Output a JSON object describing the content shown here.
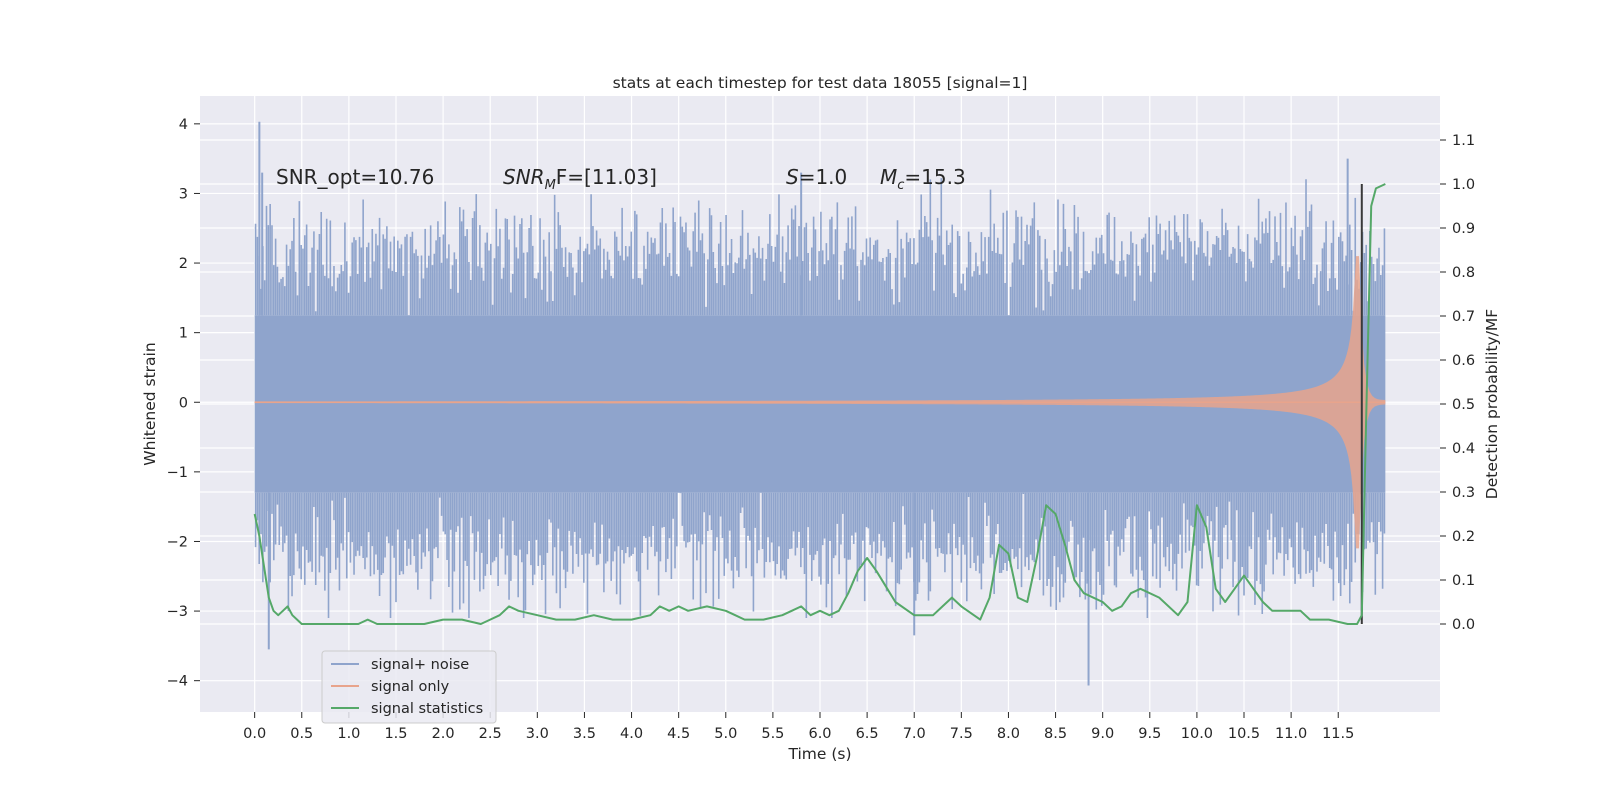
{
  "chart_data": {
    "type": "line",
    "title": "stats at each timestep for test data 18055 [signal=1]",
    "xlabel": "Time (s)",
    "ylabel_left": "Whitened strain",
    "ylabel_right": "Detection probability/MF",
    "xlim": [
      -0.58,
      12.58
    ],
    "ylim_left": [
      -4.45,
      4.4
    ],
    "ylim_right": [
      -0.2,
      1.2
    ],
    "grid": true,
    "legend_position": "lower-left",
    "x_ticks": [
      "0.0",
      "0.5",
      "1.0",
      "1.5",
      "2.0",
      "2.5",
      "3.0",
      "3.5",
      "4.0",
      "4.5",
      "5.0",
      "5.5",
      "6.0",
      "6.5",
      "7.0",
      "7.5",
      "8.0",
      "8.5",
      "9.0",
      "9.5",
      "10.0",
      "10.5",
      "11.0",
      "11.5"
    ],
    "y_left_ticks": [
      "4",
      "3",
      "2",
      "1",
      "0",
      "−1",
      "−2",
      "−3",
      "−4"
    ],
    "y_right_ticks": [
      "1.1",
      "1.0",
      "0.9",
      "0.8",
      "0.7",
      "0.6",
      "0.5",
      "0.4",
      "0.3",
      "0.2",
      "0.1",
      "0.0"
    ],
    "annotations": {
      "snr_opt": "SNR_opt=10.76",
      "snr_mf_main": "SNR",
      "snr_mf_sub": "M",
      "snr_mf_rest": "F=[11.03]",
      "s_var": "S",
      "s_val": "=1.0",
      "mc_var": "M",
      "mc_sub": "c",
      "mc_val": "=15.3"
    },
    "series": [
      {
        "name": "signal+ noise",
        "color": "#8fa4cc",
        "axis": "left",
        "time_range": [
          0.0,
          12.0
        ],
        "envelope_core": [
          -1.3,
          1.25
        ],
        "envelope_typical": [
          -2.2,
          2.2
        ],
        "peaks": [
          {
            "x": 0.05,
            "y": 4.03
          },
          {
            "x": 0.08,
            "y": 3.3
          },
          {
            "x": 0.15,
            "y": -3.55
          },
          {
            "x": 5.8,
            "y": 3.3
          },
          {
            "x": 7.0,
            "y": -3.35
          },
          {
            "x": 8.85,
            "y": -4.07
          },
          {
            "x": 11.6,
            "y": 3.5
          },
          {
            "x": 11.75,
            "y": -3.0
          }
        ]
      },
      {
        "name": "signal only",
        "color": "#e8a48c",
        "axis": "left",
        "waveform": "chirp",
        "time_range": [
          0.0,
          12.0
        ],
        "merger_time": 11.72,
        "peak_amplitude": 2.1
      },
      {
        "name": "signal statistics",
        "color": "#55a868",
        "axis": "right",
        "x": [
          0.0,
          0.05,
          0.1,
          0.15,
          0.2,
          0.25,
          0.3,
          0.35,
          0.4,
          0.5,
          0.6,
          0.8,
          1.0,
          1.1,
          1.2,
          1.3,
          1.4,
          1.6,
          1.8,
          2.0,
          2.2,
          2.4,
          2.5,
          2.6,
          2.7,
          2.8,
          3.0,
          3.2,
          3.4,
          3.6,
          3.8,
          4.0,
          4.2,
          4.3,
          4.4,
          4.5,
          4.6,
          4.8,
          5.0,
          5.1,
          5.2,
          5.4,
          5.6,
          5.7,
          5.8,
          5.9,
          6.0,
          6.1,
          6.2,
          6.3,
          6.4,
          6.5,
          6.6,
          6.8,
          7.0,
          7.2,
          7.3,
          7.4,
          7.5,
          7.7,
          7.8,
          7.9,
          8.0,
          8.1,
          8.2,
          8.3,
          8.4,
          8.5,
          8.6,
          8.7,
          8.8,
          9.0,
          9.1,
          9.2,
          9.3,
          9.4,
          9.6,
          9.8,
          9.9,
          10.0,
          10.1,
          10.2,
          10.3,
          10.4,
          10.5,
          10.6,
          10.7,
          10.8,
          11.0,
          11.1,
          11.2,
          11.4,
          11.6,
          11.7,
          11.75,
          11.8,
          11.85,
          11.9,
          12.0
        ],
        "y": [
          0.25,
          0.2,
          0.13,
          0.06,
          0.03,
          0.02,
          0.03,
          0.04,
          0.02,
          0.0,
          0.0,
          0.0,
          0.0,
          0.0,
          0.01,
          0.0,
          0.0,
          0.0,
          0.0,
          0.01,
          0.01,
          0.0,
          0.01,
          0.02,
          0.04,
          0.03,
          0.02,
          0.01,
          0.01,
          0.02,
          0.01,
          0.01,
          0.02,
          0.04,
          0.03,
          0.04,
          0.03,
          0.04,
          0.03,
          0.02,
          0.01,
          0.01,
          0.02,
          0.03,
          0.04,
          0.02,
          0.03,
          0.02,
          0.03,
          0.07,
          0.12,
          0.15,
          0.12,
          0.05,
          0.02,
          0.02,
          0.04,
          0.06,
          0.04,
          0.01,
          0.06,
          0.18,
          0.16,
          0.06,
          0.05,
          0.15,
          0.27,
          0.25,
          0.18,
          0.1,
          0.07,
          0.05,
          0.03,
          0.04,
          0.07,
          0.08,
          0.06,
          0.02,
          0.05,
          0.27,
          0.22,
          0.08,
          0.05,
          0.08,
          0.11,
          0.08,
          0.05,
          0.03,
          0.03,
          0.03,
          0.01,
          0.01,
          0.0,
          0.0,
          0.02,
          0.5,
          0.95,
          0.99,
          1.0
        ]
      }
    ],
    "marker_line": {
      "x": 11.75,
      "y_range": [
        0.0,
        1.0
      ],
      "color": "#3a3a3a"
    }
  }
}
